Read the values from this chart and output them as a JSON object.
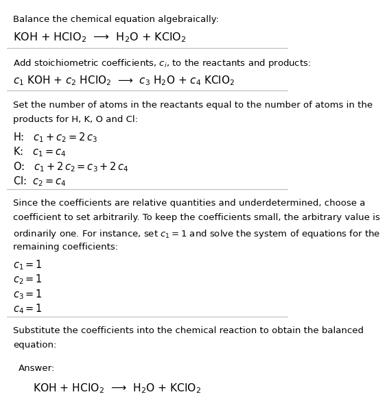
{
  "bg_color": "#ffffff",
  "text_color": "#000000",
  "section1_title": "Balance the chemical equation algebraically:",
  "section1_eq": "KOH + HClO$_2$  ⟶  H$_2$O + KClO$_2$",
  "section2_title": "Add stoichiometric coefficients, $c_i$, to the reactants and products:",
  "section2_eq": "$c_1$ KOH + $c_2$ HClO$_2$  ⟶  $c_3$ H$_2$O + $c_4$ KClO$_2$",
  "section3_title_lines": [
    "Set the number of atoms in the reactants equal to the number of atoms in the",
    "products for H, K, O and Cl:"
  ],
  "section3_lines": [
    "H:   $c_1 + c_2 = 2\\,c_3$",
    "K:   $c_1 = c_4$",
    "O:   $c_1 + 2\\,c_2 = c_3 + 2\\,c_4$",
    "Cl:  $c_2 = c_4$"
  ],
  "section4_title_lines": [
    "Since the coefficients are relative quantities and underdetermined, choose a",
    "coefficient to set arbitrarily. To keep the coefficients small, the arbitrary value is",
    "ordinarily one. For instance, set $c_1 = 1$ and solve the system of equations for the",
    "remaining coefficients:"
  ],
  "section4_lines": [
    "$c_1 = 1$",
    "$c_2 = 1$",
    "$c_3 = 1$",
    "$c_4 = 1$"
  ],
  "section5_title_lines": [
    "Substitute the coefficients into the chemical reaction to obtain the balanced",
    "equation:"
  ],
  "answer_label": "Answer:",
  "answer_eq": "KOH + HClO$_2$  ⟶  H$_2$O + KClO$_2$",
  "box_face_color": "#e6f4f9",
  "box_edge_color": "#99ccdd",
  "hline_color": "#bbbbbb"
}
